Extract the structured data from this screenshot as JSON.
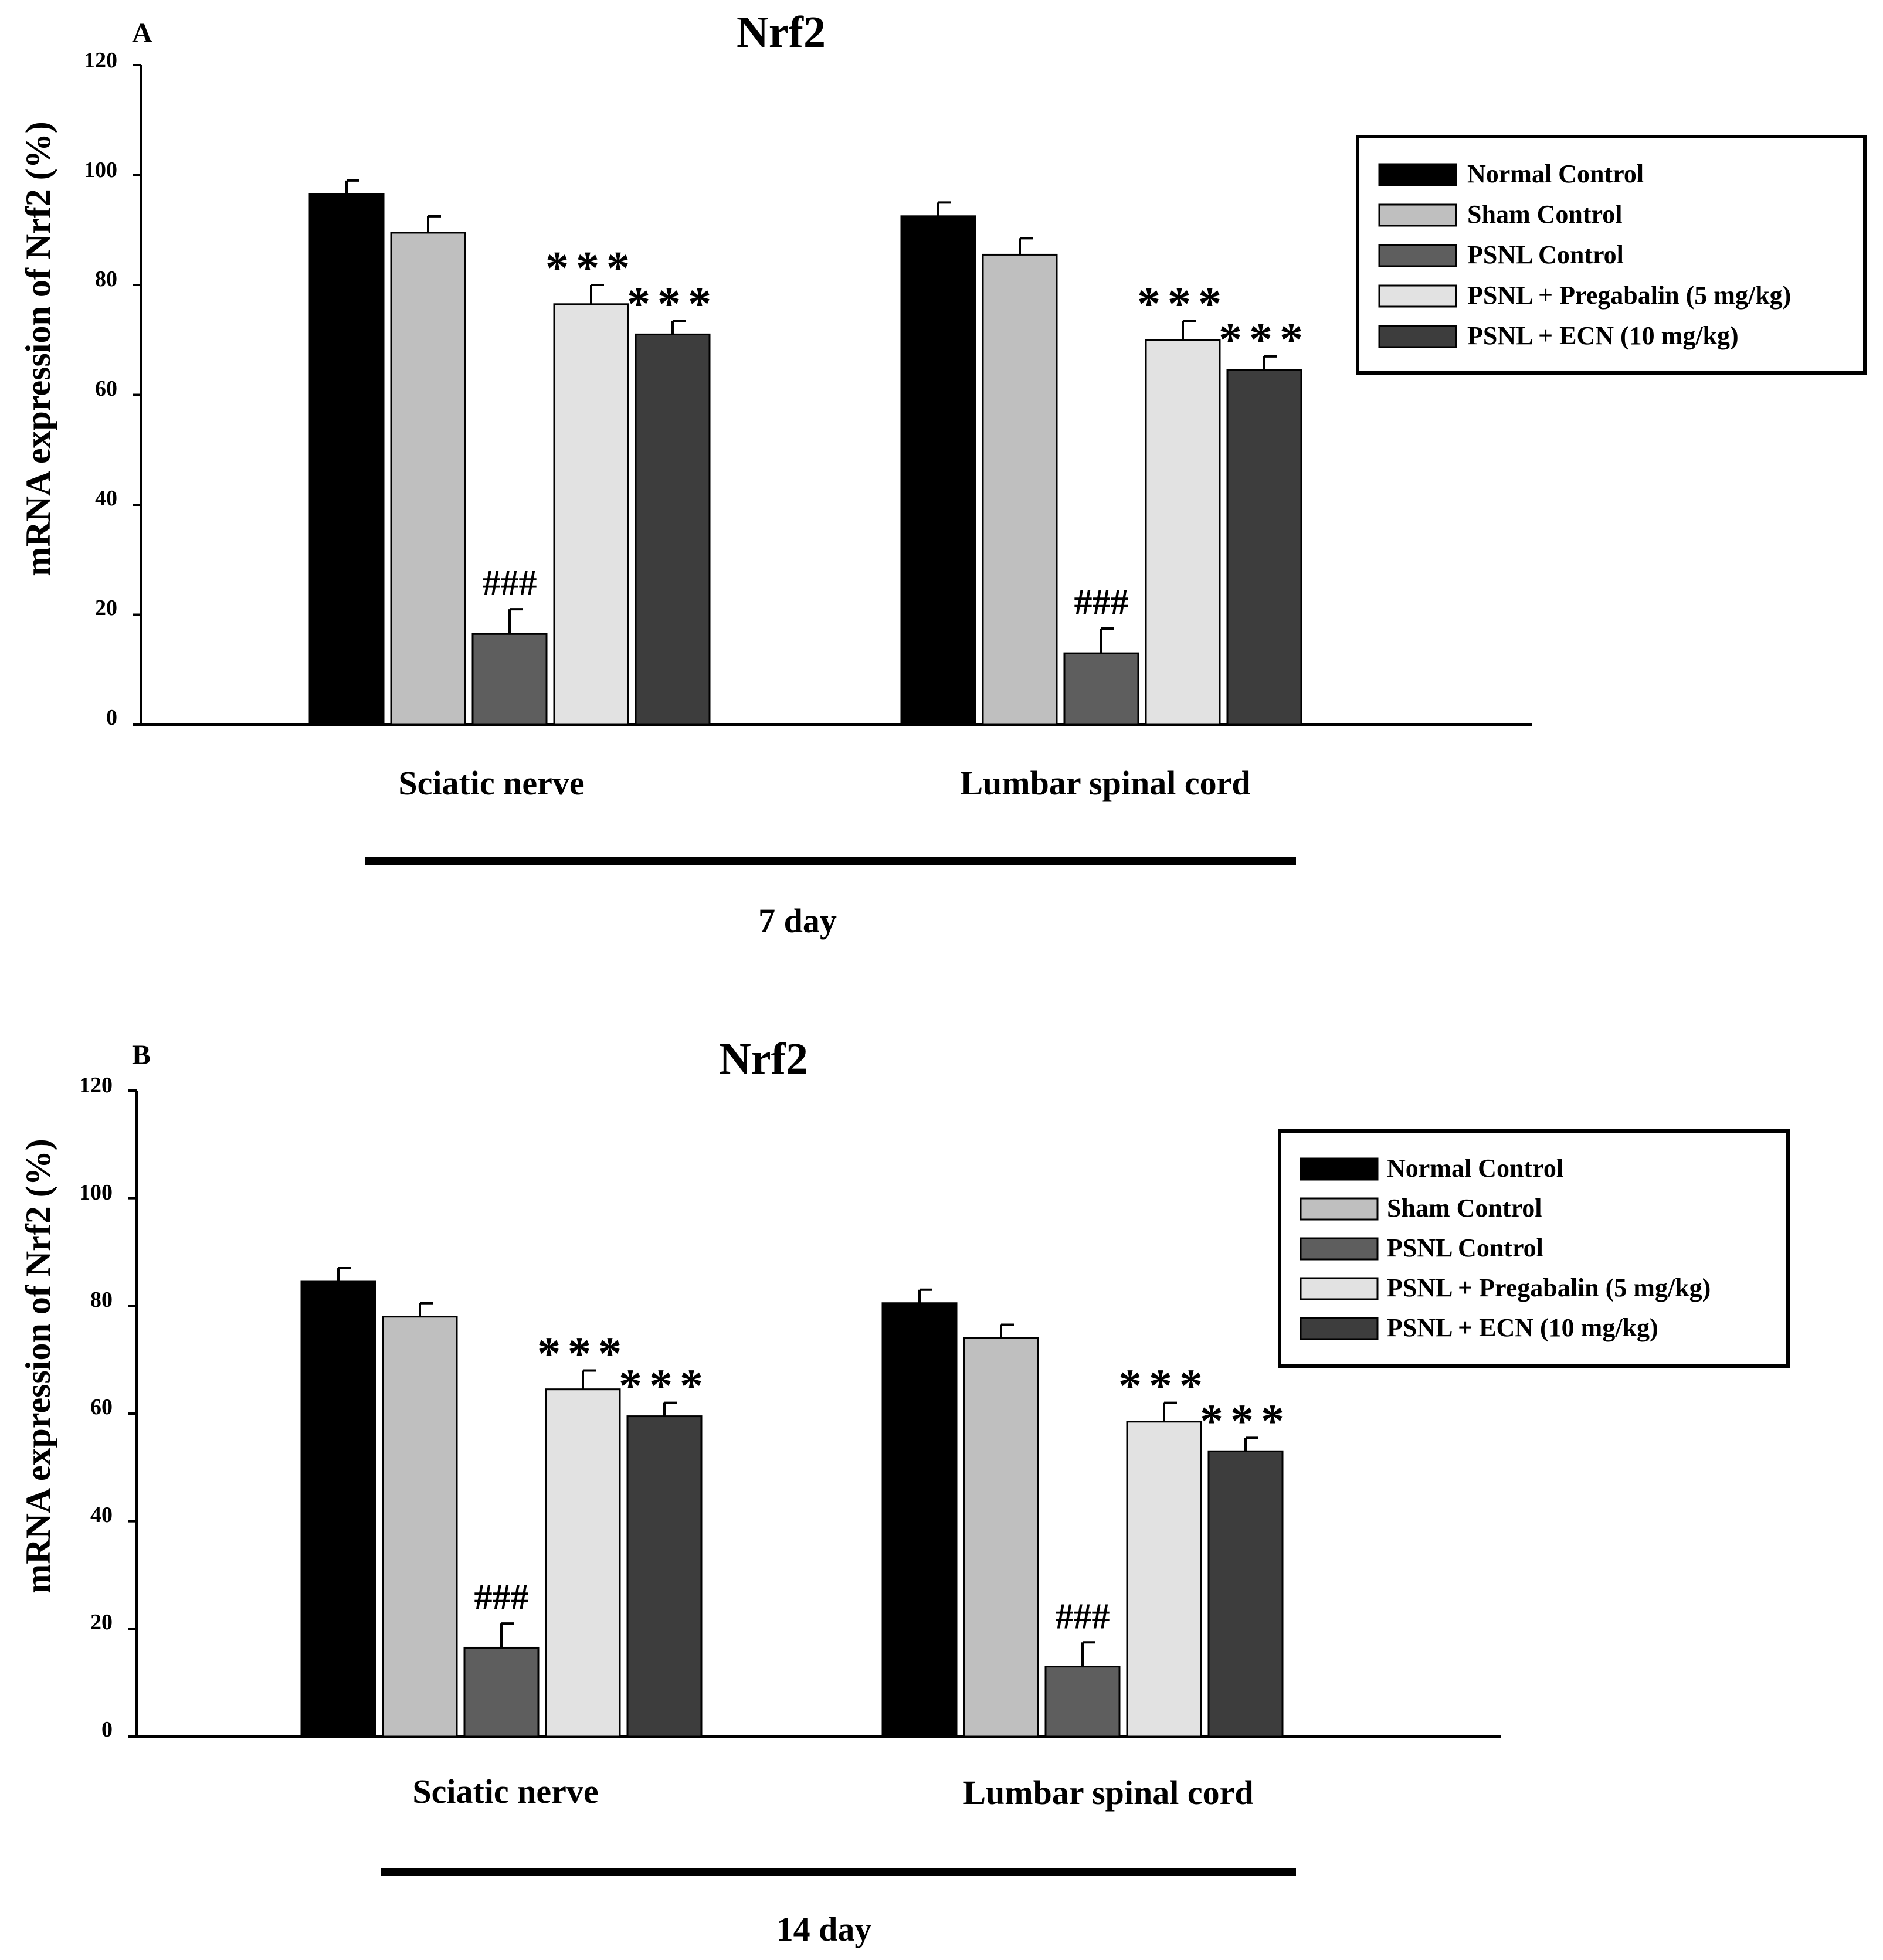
{
  "colors": {
    "Normal Control": "#000000",
    "Sham Control": "#bfbfbf",
    "PSNL Control": "#5e5e5e",
    "PSNL + Pregabalin (5 mg/kg)": "#e2e2e2",
    "PSNL + ECN (10 mg/kg)": "#3d3d3d"
  },
  "chart_data": [
    {
      "type": "bar",
      "panel_label": "A",
      "title": "Nrf2",
      "ylabel": "mRNA expression of Nrf2 (%)",
      "xlabel": "",
      "ylim": [
        0,
        120
      ],
      "yticks": [
        "0",
        "20",
        "40",
        "60",
        "80",
        "100",
        "120"
      ],
      "categories": [
        "Sciatic nerve",
        "Lumbar spinal cord"
      ],
      "timepoint": "7 day",
      "legend_position": "top-right",
      "series": [
        {
          "name": "Normal Control",
          "values": [
            96.5,
            92.5
          ],
          "errors": [
            2.5,
            2.5
          ],
          "annotations": [
            "",
            ""
          ]
        },
        {
          "name": "Sham Control",
          "values": [
            89.5,
            85.5
          ],
          "errors": [
            3.0,
            3.0
          ],
          "annotations": [
            "",
            ""
          ]
        },
        {
          "name": "PSNL Control",
          "values": [
            16.5,
            13.0
          ],
          "errors": [
            4.5,
            4.5
          ],
          "annotations": [
            "###",
            "###"
          ]
        },
        {
          "name": "PSNL + Pregabalin (5 mg/kg)",
          "values": [
            76.5,
            70.0
          ],
          "errors": [
            3.5,
            3.5
          ],
          "annotations": [
            "***",
            "***"
          ]
        },
        {
          "name": "PSNL + ECN (10 mg/kg)",
          "values": [
            71.0,
            64.5
          ],
          "errors": [
            2.5,
            2.5
          ],
          "annotations": [
            "***",
            "***"
          ]
        }
      ]
    },
    {
      "type": "bar",
      "panel_label": "B",
      "title": "Nrf2",
      "ylabel": "mRNA expression of Nrf2 (%)",
      "xlabel": "",
      "ylim": [
        0,
        120
      ],
      "yticks": [
        "0",
        "20",
        "40",
        "60",
        "80",
        "100",
        "120"
      ],
      "categories": [
        "Sciatic nerve",
        "Lumbar spinal cord"
      ],
      "timepoint": "14 day",
      "legend_position": "top-right",
      "series": [
        {
          "name": "Normal Control",
          "values": [
            84.5,
            80.5
          ],
          "errors": [
            2.5,
            2.5
          ],
          "annotations": [
            "",
            ""
          ]
        },
        {
          "name": "Sham Control",
          "values": [
            78.0,
            74.0
          ],
          "errors": [
            2.5,
            2.5
          ],
          "annotations": [
            "",
            ""
          ]
        },
        {
          "name": "PSNL Control",
          "values": [
            16.5,
            13.0
          ],
          "errors": [
            4.5,
            4.5
          ],
          "annotations": [
            "###",
            "###"
          ]
        },
        {
          "name": "PSNL + Pregabalin (5 mg/kg)",
          "values": [
            64.5,
            58.5
          ],
          "errors": [
            3.5,
            3.5
          ],
          "annotations": [
            "***",
            "***"
          ]
        },
        {
          "name": "PSNL + ECN (10 mg/kg)",
          "values": [
            59.5,
            53.0
          ],
          "errors": [
            2.5,
            2.5
          ],
          "annotations": [
            "***",
            "***"
          ]
        }
      ]
    }
  ]
}
